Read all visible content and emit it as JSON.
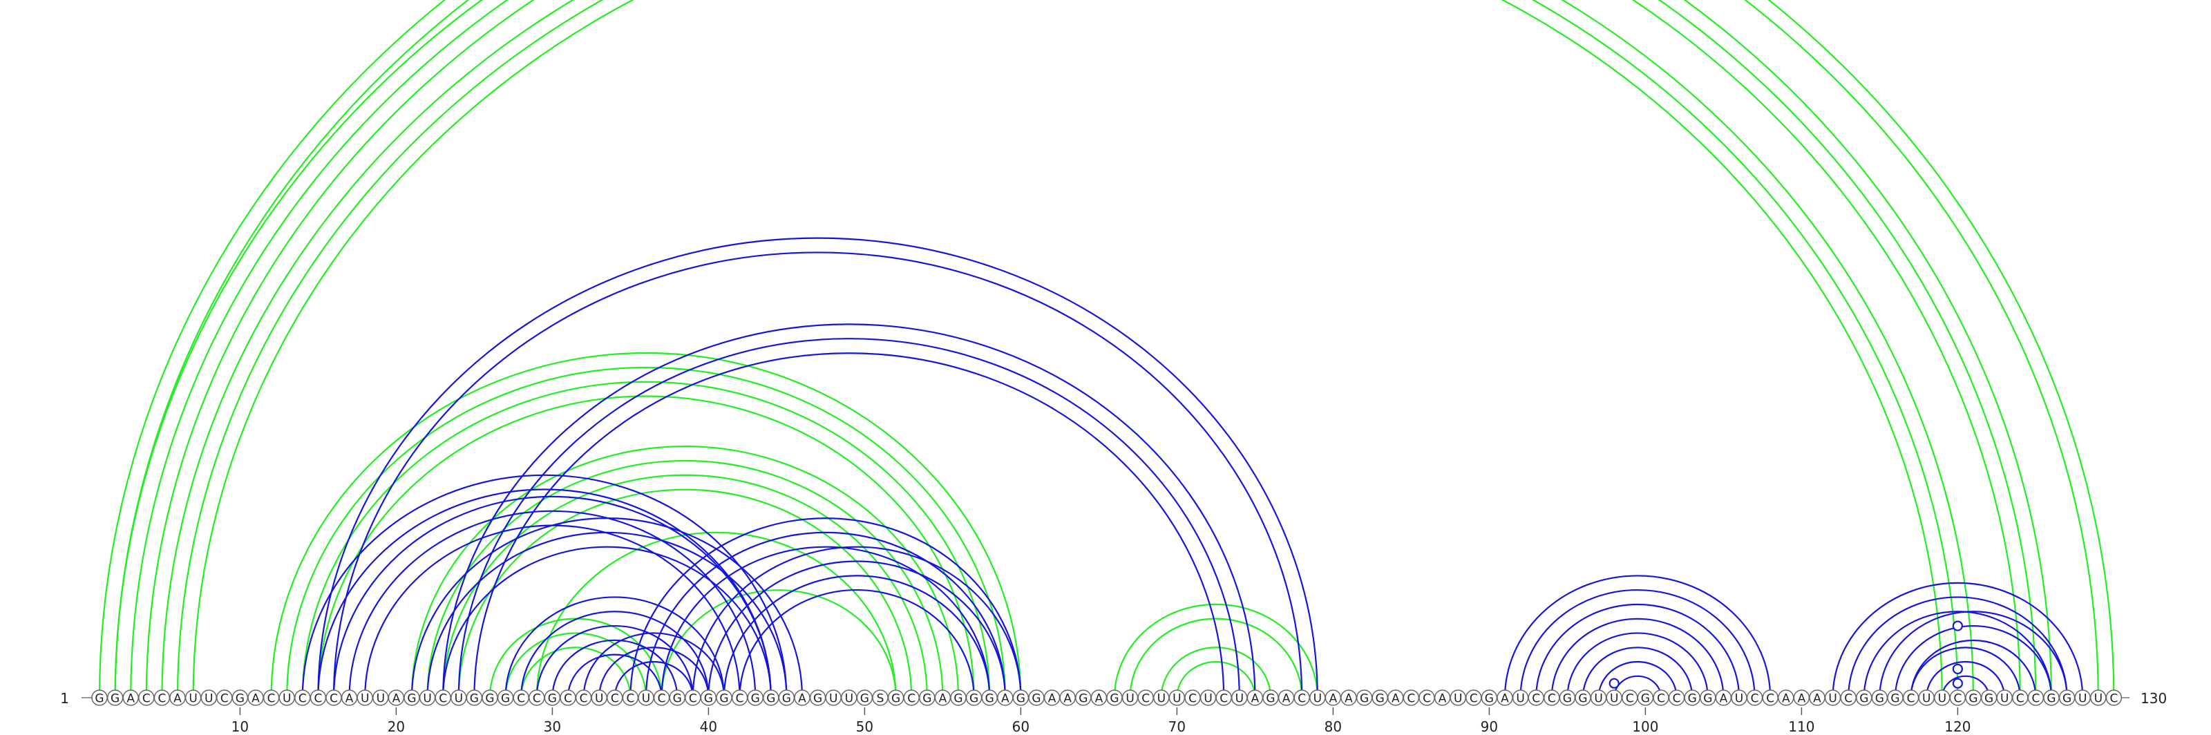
{
  "diagram": {
    "type": "rna-arc-diagram",
    "sequence": "GGACCAUUCGACUCCCAUUAGUCUGGGCCGCCUCCUCGCGGCGGGAGUUGSGCGAGGGAGGAAGAGUCUUCUCUAGACUAAGGACCAUCGAUCCGGUUCGCCGGAUCCAAAUCGGGCUUCGGUCCGGUUC",
    "start_label": "1",
    "end_label": "130",
    "ticks": [
      "10",
      "20",
      "30",
      "40",
      "50",
      "60",
      "70",
      "80",
      "90",
      "100",
      "110",
      "120"
    ],
    "colors": {
      "green": "#22ee22",
      "blue": "#1515dd",
      "backbone": "#777777",
      "text": "#222222"
    },
    "green_helices": [
      {
        "from": 1,
        "to": 130,
        "n": 2
      },
      {
        "from": 2,
        "to": 126,
        "n": 3
      },
      {
        "from": 5,
        "to": 121,
        "n": 3
      },
      {
        "from": 12,
        "to": 60,
        "n": 4
      },
      {
        "from": 21,
        "to": 56,
        "n": 4
      },
      {
        "from": 26,
        "to": 37,
        "n": 3
      },
      {
        "from": 29,
        "to": 52,
        "n": 1
      },
      {
        "from": 37,
        "to": 52,
        "n": 1
      },
      {
        "from": 66,
        "to": 79,
        "n": 2
      },
      {
        "from": 69,
        "to": 76,
        "n": 2
      }
    ],
    "blue_helices": [
      {
        "from": 15,
        "to": 79,
        "n": 2
      },
      {
        "from": 23,
        "to": 75,
        "n": 3
      },
      {
        "from": 14,
        "to": 45,
        "n": 2
      },
      {
        "from": 16,
        "to": 44,
        "n": 3
      },
      {
        "from": 21,
        "to": 46,
        "n": 3
      },
      {
        "from": 27,
        "to": 41,
        "n": 5
      },
      {
        "from": 32,
        "to": 41,
        "n": 3
      },
      {
        "from": 35,
        "to": 60,
        "n": 3
      },
      {
        "from": 39,
        "to": 60,
        "n": 4
      },
      {
        "from": 91,
        "to": 108,
        "n": 8
      },
      {
        "from": 112,
        "to": 128,
        "n": 3
      },
      {
        "from": 115,
        "to": 127,
        "n": 3
      },
      {
        "from": 117,
        "to": 124,
        "n": 3
      }
    ],
    "open_markers": [
      {
        "pos": 65,
        "color": "green",
        "arc": [
          1,
          130
        ]
      },
      {
        "pos": 98,
        "color": "blue",
        "arc": [
          97,
          99
        ]
      },
      {
        "pos": 120,
        "color": "blue",
        "arc": [
          115,
          125
        ]
      },
      {
        "pos": 120,
        "color": "blue",
        "arc": [
          118,
          122
        ]
      },
      {
        "pos": 120,
        "color": "blue",
        "arc": [
          119,
          121
        ]
      }
    ]
  }
}
